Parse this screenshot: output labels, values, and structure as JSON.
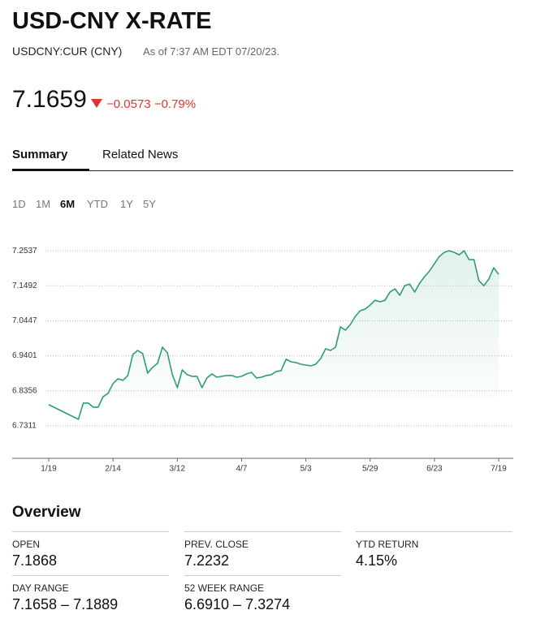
{
  "header": {
    "title": "USD-CNY X-RATE",
    "ticker": "USDCNY:CUR (CNY)",
    "as_of": "As of 7:37 AM EDT 07/20/23."
  },
  "quote": {
    "price": "7.1659",
    "change": "−0.0573",
    "change_pct": "−0.79%"
  },
  "tabs": [
    "Summary",
    "Related News"
  ],
  "ranges": [
    "1D",
    "1M",
    "6M",
    "YTD",
    "1Y",
    "5Y"
  ],
  "chart_data": {
    "type": "line",
    "color": "#2e9e72",
    "categories": [
      "1/19",
      null,
      null,
      null,
      null,
      null,
      null,
      null,
      null,
      null,
      null,
      null,
      null,
      "2/14",
      null,
      null,
      null,
      null,
      null,
      null,
      null,
      null,
      null,
      null,
      null,
      null,
      "3/12",
      null,
      null,
      null,
      null,
      null,
      null,
      null,
      null,
      null,
      null,
      null,
      null,
      "4/7",
      null,
      null,
      null,
      null,
      null,
      null,
      null,
      null,
      null,
      null,
      null,
      null,
      "5/3",
      null,
      null,
      null,
      null,
      null,
      null,
      null,
      null,
      null,
      null,
      null,
      null,
      "5/29",
      null,
      null,
      null,
      null,
      null,
      null,
      null,
      null,
      null,
      null,
      null,
      null,
      "6/23",
      null,
      null,
      null,
      null,
      null,
      null,
      null,
      null,
      null,
      null,
      null,
      null,
      "7/19"
    ],
    "values": [
      6.7941,
      6.7868,
      6.7796,
      6.7723,
      6.7651,
      6.7578,
      6.7505,
      6.7989,
      6.7989,
      6.7868,
      6.7868,
      6.8183,
      6.828,
      6.857,
      6.8715,
      6.8667,
      6.8812,
      6.9441,
      6.9562,
      6.9465,
      6.8884,
      6.9054,
      6.9175,
      6.9658,
      6.9489,
      6.8836,
      6.8449,
      6.8981,
      6.8836,
      6.8788,
      6.8788,
      6.8449,
      6.8739,
      6.886,
      6.8763,
      6.8788,
      6.8812,
      6.8812,
      6.8763,
      6.8788,
      6.886,
      6.8908,
      6.8739,
      6.8763,
      6.8812,
      6.8836,
      6.8933,
      6.8957,
      6.9296,
      6.9223,
      6.9199,
      6.915,
      6.9126,
      6.9102,
      6.915,
      6.932,
      6.961,
      6.9562,
      6.9658,
      7.0263,
      7.0166,
      7.0336,
      7.0578,
      7.0747,
      7.0795,
      7.0916,
      7.1061,
      7.1013,
      7.1061,
      7.1303,
      7.14,
      7.1207,
      7.1497,
      7.1545,
      7.1303,
      7.1569,
      7.1763,
      7.1932,
      7.215,
      7.2368,
      7.2489,
      7.2537,
      7.2489,
      7.2416,
      7.2537,
      7.2271,
      7.2271,
      7.1642,
      7.1497,
      7.169,
      7.2029,
      7.1835
    ],
    "ylim": [
      6.634,
      7.3
    ],
    "yticks": [
      6.7311,
      6.8356,
      6.9401,
      7.0447,
      7.1492,
      7.2537
    ],
    "grid": true
  },
  "overview": {
    "title": "Overview",
    "items": [
      {
        "label": "OPEN",
        "value": "7.1868"
      },
      {
        "label": "PREV. CLOSE",
        "value": "7.2232"
      },
      {
        "label": "YTD RETURN",
        "value": "4.15%"
      },
      {
        "label": "DAY RANGE",
        "value": "7.1658 – 7.1889"
      },
      {
        "label": "52 WEEK RANGE",
        "value": "6.6910 – 7.3274"
      }
    ]
  }
}
